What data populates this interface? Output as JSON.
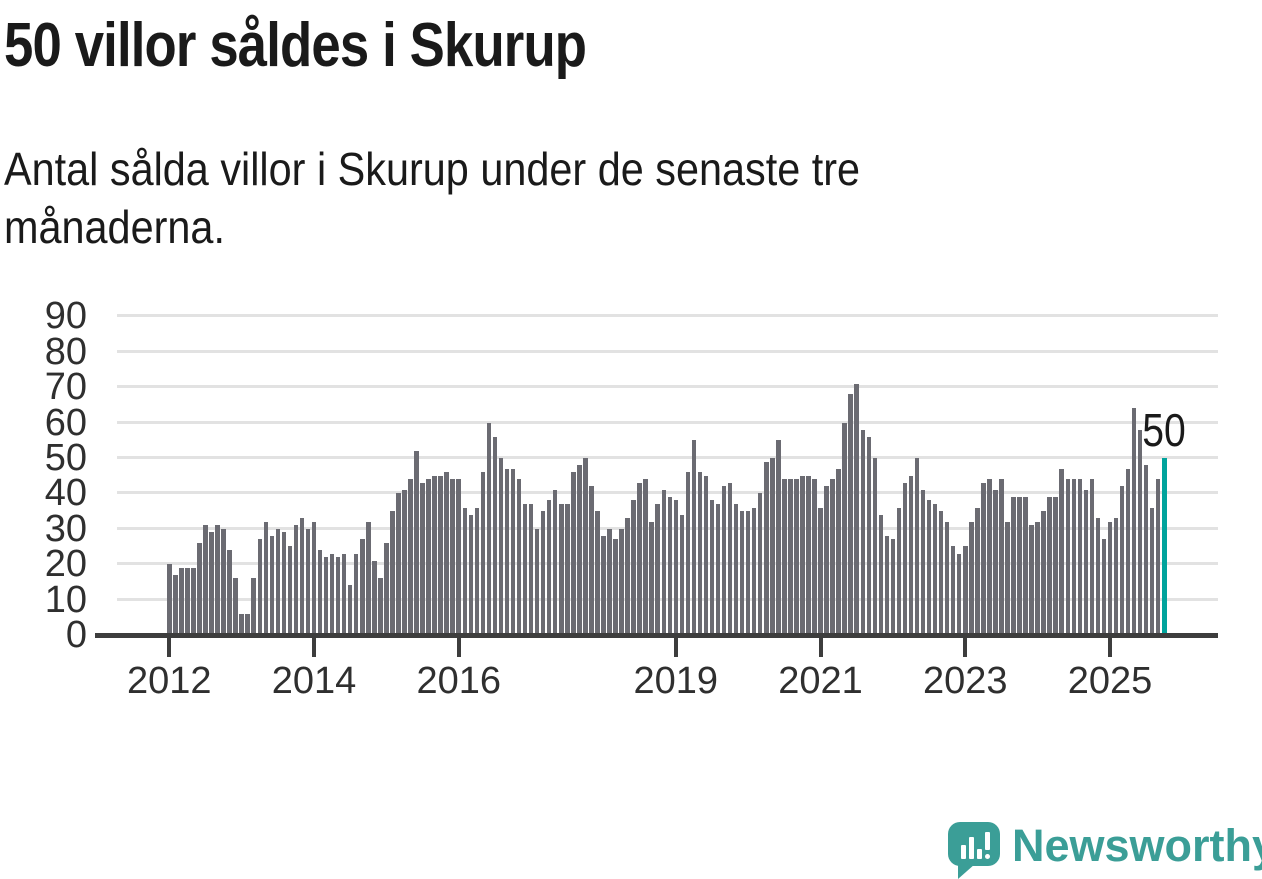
{
  "header": {
    "title": "50 villor såldes i Skurup",
    "subtitle": "Antal sålda villor i Skurup under de senaste tre månaderna."
  },
  "footer": {
    "brand": "Newsworthy",
    "logo_icon": "speech-bubble-bar-chart-icon"
  },
  "colors": {
    "bar": "#6b6b72",
    "highlight": "#00a39c",
    "brand": "#3b9e97",
    "grid": "#e2e2e2",
    "axis": "#3d3d3d",
    "tick_label": "#2f2f2f",
    "text": "#1a1a1a"
  },
  "chart_data": {
    "type": "bar",
    "title": "50 villor såldes i Skurup",
    "subtitle": "Antal sålda villor i Skurup under de senaste tre månaderna.",
    "xlabel": "",
    "ylabel": "",
    "ylim": [
      0,
      90
    ],
    "y_ticks": [
      0,
      10,
      20,
      30,
      40,
      50,
      60,
      70,
      80,
      90
    ],
    "grid": true,
    "legend": false,
    "x_unit": "month",
    "x_tick_labels": [
      "2012",
      "2014",
      "2016",
      "2019",
      "2021",
      "2023",
      "2025"
    ],
    "x_ticks": [
      {
        "label": "2012",
        "month_index": 0
      },
      {
        "label": "2014",
        "month_index": 24
      },
      {
        "label": "2016",
        "month_index": 48
      },
      {
        "label": "2019",
        "month_index": 84
      },
      {
        "label": "2021",
        "month_index": 108
      },
      {
        "label": "2023",
        "month_index": 132
      },
      {
        "label": "2025",
        "month_index": 156
      }
    ],
    "values": [
      20,
      17,
      19,
      19,
      19,
      26,
      31,
      29,
      31,
      30,
      24,
      16,
      6,
      6,
      16,
      27,
      32,
      28,
      30,
      29,
      25,
      31,
      33,
      30,
      32,
      24,
      22,
      23,
      22,
      23,
      14,
      23,
      27,
      32,
      21,
      16,
      26,
      35,
      40,
      41,
      44,
      52,
      43,
      44,
      45,
      45,
      46,
      44,
      44,
      36,
      34,
      36,
      46,
      60,
      56,
      50,
      47,
      47,
      44,
      37,
      37,
      30,
      35,
      38,
      41,
      37,
      37,
      46,
      48,
      50,
      42,
      35,
      28,
      30,
      27,
      30,
      33,
      38,
      43,
      44,
      32,
      37,
      41,
      39,
      38,
      34,
      46,
      55,
      46,
      45,
      38,
      37,
      42,
      43,
      37,
      35,
      35,
      36,
      40,
      49,
      50,
      55,
      44,
      44,
      44,
      45,
      45,
      44,
      36,
      42,
      44,
      47,
      60,
      68,
      71,
      58,
      56,
      50,
      34,
      28,
      27,
      36,
      43,
      45,
      50,
      41,
      38,
      37,
      35,
      32,
      25,
      23,
      25,
      32,
      36,
      43,
      44,
      41,
      44,
      32,
      39,
      39,
      39,
      31,
      32,
      35,
      39,
      39,
      47,
      44,
      44,
      44,
      41,
      44,
      33,
      27,
      32,
      33,
      42,
      47,
      64,
      58,
      48,
      36,
      44,
      50
    ],
    "highlight_index": 165,
    "highlight_label": "50"
  }
}
